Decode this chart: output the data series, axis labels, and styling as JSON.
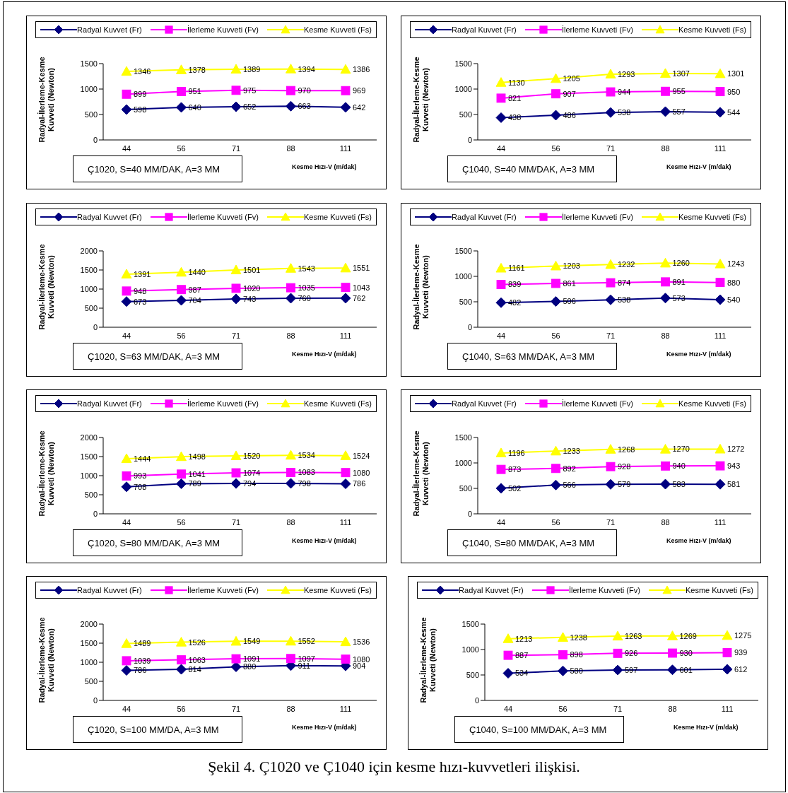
{
  "chart_data": [
    {
      "type": "line",
      "title": "Ç1020, S=40 MM/DAK, A=3 MM",
      "xlabel": "Kesme Hızı-V (m/dak)",
      "ylabel": "Radyal-İlerleme-Kesme Kuvveti (Newton)",
      "categories": [
        "44",
        "56",
        "71",
        "88",
        "111"
      ],
      "ylim": [
        0,
        1500
      ],
      "yticks": [
        0,
        500,
        1000,
        1500
      ],
      "legend": "top",
      "grid": false,
      "data_labels": true,
      "series": [
        {
          "name": "Radyal Kuvvet (Fr)",
          "color": "#000080",
          "marker": "diamond",
          "values": [
            598,
            640,
            652,
            663,
            642
          ]
        },
        {
          "name": "İlerleme Kuvveti (Fv)",
          "color": "#ff00ff",
          "marker": "square",
          "values": [
            899,
            951,
            975,
            970,
            969
          ]
        },
        {
          "name": "Kesme Kuvveti (Fs)",
          "color": "#ffff00",
          "marker": "triangle",
          "values": [
            1346,
            1378,
            1389,
            1394,
            1386
          ]
        }
      ]
    },
    {
      "type": "line",
      "title": "Ç1040, S=40 MM/DAK, A=3 MM",
      "xlabel": "Kesme Hızı-V (m/dak)",
      "ylabel": "Radyal-İlerleme-Kesme Kuvveti (Newton)",
      "categories": [
        "44",
        "56",
        "71",
        "88",
        "111"
      ],
      "ylim": [
        0,
        1500
      ],
      "yticks": [
        0,
        500,
        1000,
        1500
      ],
      "legend": "top",
      "grid": false,
      "data_labels": true,
      "series": [
        {
          "name": "Radyal Kuvvet (Fr)",
          "color": "#000080",
          "marker": "diamond",
          "values": [
            438,
            486,
            538,
            557,
            544
          ]
        },
        {
          "name": "İlerleme Kuvveti (Fv)",
          "color": "#ff00ff",
          "marker": "square",
          "values": [
            821,
            907,
            944,
            955,
            950
          ]
        },
        {
          "name": "Kesme Kuvveti (Fs)",
          "color": "#ffff00",
          "marker": "triangle",
          "values": [
            1130,
            1205,
            1293,
            1307,
            1301
          ]
        }
      ]
    },
    {
      "type": "line",
      "title": "Ç1020, S=63 MM/DAK, A=3 MM",
      "xlabel": "Kesme Hızı-V (m/dak)",
      "ylabel": "Radyal-İlerleme-Kesme Kuvveti (Newton)",
      "categories": [
        "44",
        "56",
        "71",
        "88",
        "111"
      ],
      "ylim": [
        0,
        2000
      ],
      "yticks": [
        0,
        500,
        1000,
        1500,
        2000
      ],
      "legend": "top",
      "grid": false,
      "data_labels": true,
      "series": [
        {
          "name": "Radyal Kuvvet (Fr)",
          "color": "#000080",
          "marker": "diamond",
          "values": [
            673,
            704,
            743,
            760,
            762
          ]
        },
        {
          "name": "İlerleme Kuvveti (Fv)",
          "color": "#ff00ff",
          "marker": "square",
          "values": [
            948,
            987,
            1020,
            1035,
            1043
          ]
        },
        {
          "name": "Kesme Kuvveti (Fs)",
          "color": "#ffff00",
          "marker": "triangle",
          "values": [
            1391,
            1440,
            1501,
            1543,
            1551
          ]
        }
      ]
    },
    {
      "type": "line",
      "title": "Ç1040, S=63 MM/DAK, A=3 MM",
      "xlabel": "Kesme Hızı-V (m/dak)",
      "ylabel": "Radyal-İlerleme-Kesme Kuvveti (Newton)",
      "categories": [
        "44",
        "56",
        "71",
        "88",
        "111"
      ],
      "ylim": [
        0,
        1500
      ],
      "yticks": [
        0,
        500,
        1000,
        1500
      ],
      "legend": "top",
      "grid": false,
      "data_labels": true,
      "series": [
        {
          "name": "Radyal Kuvvet (Fr)",
          "color": "#000080",
          "marker": "diamond",
          "values": [
            482,
            506,
            538,
            573,
            540
          ]
        },
        {
          "name": "İlerleme Kuvveti (Fv)",
          "color": "#ff00ff",
          "marker": "square",
          "values": [
            839,
            861,
            874,
            891,
            880
          ]
        },
        {
          "name": "Kesme Kuvveti (Fs)",
          "color": "#ffff00",
          "marker": "triangle",
          "values": [
            1161,
            1203,
            1232,
            1260,
            1243
          ]
        }
      ]
    },
    {
      "type": "line",
      "title": "Ç1020, S=80 MM/DAK, A=3 MM",
      "xlabel": "Kesme Hızı-V (m/dak)",
      "ylabel": "Radyal-İlerleme-Kesme Kuvveti (Newton)",
      "categories": [
        "44",
        "56",
        "71",
        "88",
        "111"
      ],
      "ylim": [
        0,
        2000
      ],
      "yticks": [
        0,
        500,
        1000,
        1500,
        2000
      ],
      "legend": "top",
      "grid": false,
      "data_labels": true,
      "series": [
        {
          "name": "Radyal Kuvvet (Fr)",
          "color": "#000080",
          "marker": "diamond",
          "values": [
            708,
            789,
            794,
            798,
            786
          ]
        },
        {
          "name": "İlerleme Kuvveti (Fv)",
          "color": "#ff00ff",
          "marker": "square",
          "values": [
            993,
            1041,
            1074,
            1083,
            1080
          ]
        },
        {
          "name": "Kesme Kuvveti (Fs)",
          "color": "#ffff00",
          "marker": "triangle",
          "values": [
            1444,
            1498,
            1520,
            1534,
            1524
          ]
        }
      ]
    },
    {
      "type": "line",
      "title": "Ç1040, S=80 MM/DAK, A=3 MM",
      "xlabel": "Kesme Hızı-V (m/dak)",
      "ylabel": "Radyal-İlerleme-Kesme Kuvveti (Newton)",
      "categories": [
        "44",
        "56",
        "71",
        "88",
        "111"
      ],
      "ylim": [
        0,
        1500
      ],
      "yticks": [
        0,
        500,
        1000,
        1500
      ],
      "legend": "top",
      "grid": false,
      "data_labels": true,
      "series": [
        {
          "name": "Radyal Kuvvet (Fr)",
          "color": "#000080",
          "marker": "diamond",
          "values": [
            502,
            566,
            579,
            583,
            581
          ]
        },
        {
          "name": "İlerleme Kuvveti (Fv)",
          "color": "#ff00ff",
          "marker": "square",
          "values": [
            873,
            892,
            928,
            940,
            943
          ]
        },
        {
          "name": "Kesme Kuvveti (Fs)",
          "color": "#ffff00",
          "marker": "triangle",
          "values": [
            1196,
            1233,
            1268,
            1270,
            1272
          ]
        }
      ]
    },
    {
      "type": "line",
      "title": "Ç1020, S=100 MM/DA, A=3 MM",
      "xlabel": "Kesme Hızı-V (m/dak)",
      "ylabel": "Radyal-İlerleme-Kesme Kuvveti (Newton)",
      "categories": [
        "44",
        "56",
        "71",
        "88",
        "111"
      ],
      "ylim": [
        0,
        2000
      ],
      "yticks": [
        0,
        500,
        1000,
        1500,
        2000
      ],
      "legend": "top",
      "grid": false,
      "data_labels": true,
      "series": [
        {
          "name": "Radyal Kuvvet (Fr)",
          "color": "#000080",
          "marker": "diamond",
          "values": [
            786,
            814,
            880,
            911,
            904
          ]
        },
        {
          "name": "İlerleme Kuvveti (Fv)",
          "color": "#ff00ff",
          "marker": "square",
          "values": [
            1039,
            1063,
            1091,
            1097,
            1080
          ]
        },
        {
          "name": "Kesme Kuvveti (Fs)",
          "color": "#ffff00",
          "marker": "triangle",
          "values": [
            1489,
            1526,
            1549,
            1552,
            1536
          ]
        }
      ]
    },
    {
      "type": "line",
      "title": "Ç1040, S=100 MM/DAK, A=3 MM",
      "xlabel": "Kesme Hızı-V (m/dak)",
      "ylabel": "Radyal-İlerleme-Kesme Kuvveti (Newton)",
      "categories": [
        "44",
        "56",
        "71",
        "88",
        "111"
      ],
      "ylim": [
        0,
        1500
      ],
      "yticks": [
        0,
        500,
        1000,
        1500
      ],
      "legend": "top",
      "grid": false,
      "data_labels": true,
      "annotations": [
        "Şekil 4. Ç1020 ve Ç1040 için kesme hızı-kuvvetleri ilişkisi."
      ],
      "series": [
        {
          "name": "Radyal Kuvvet (Fr)",
          "color": "#000080",
          "marker": "diamond",
          "values": [
            534,
            580,
            597,
            601,
            612
          ]
        },
        {
          "name": "İlerleme Kuvveti (Fv)",
          "color": "#ff00ff",
          "marker": "square",
          "values": [
            887,
            898,
            926,
            930,
            939
          ]
        },
        {
          "name": "Kesme Kuvveti (Fs)",
          "color": "#ffff00",
          "marker": "triangle",
          "values": [
            1213,
            1238,
            1263,
            1269,
            1275
          ]
        }
      ]
    }
  ]
}
